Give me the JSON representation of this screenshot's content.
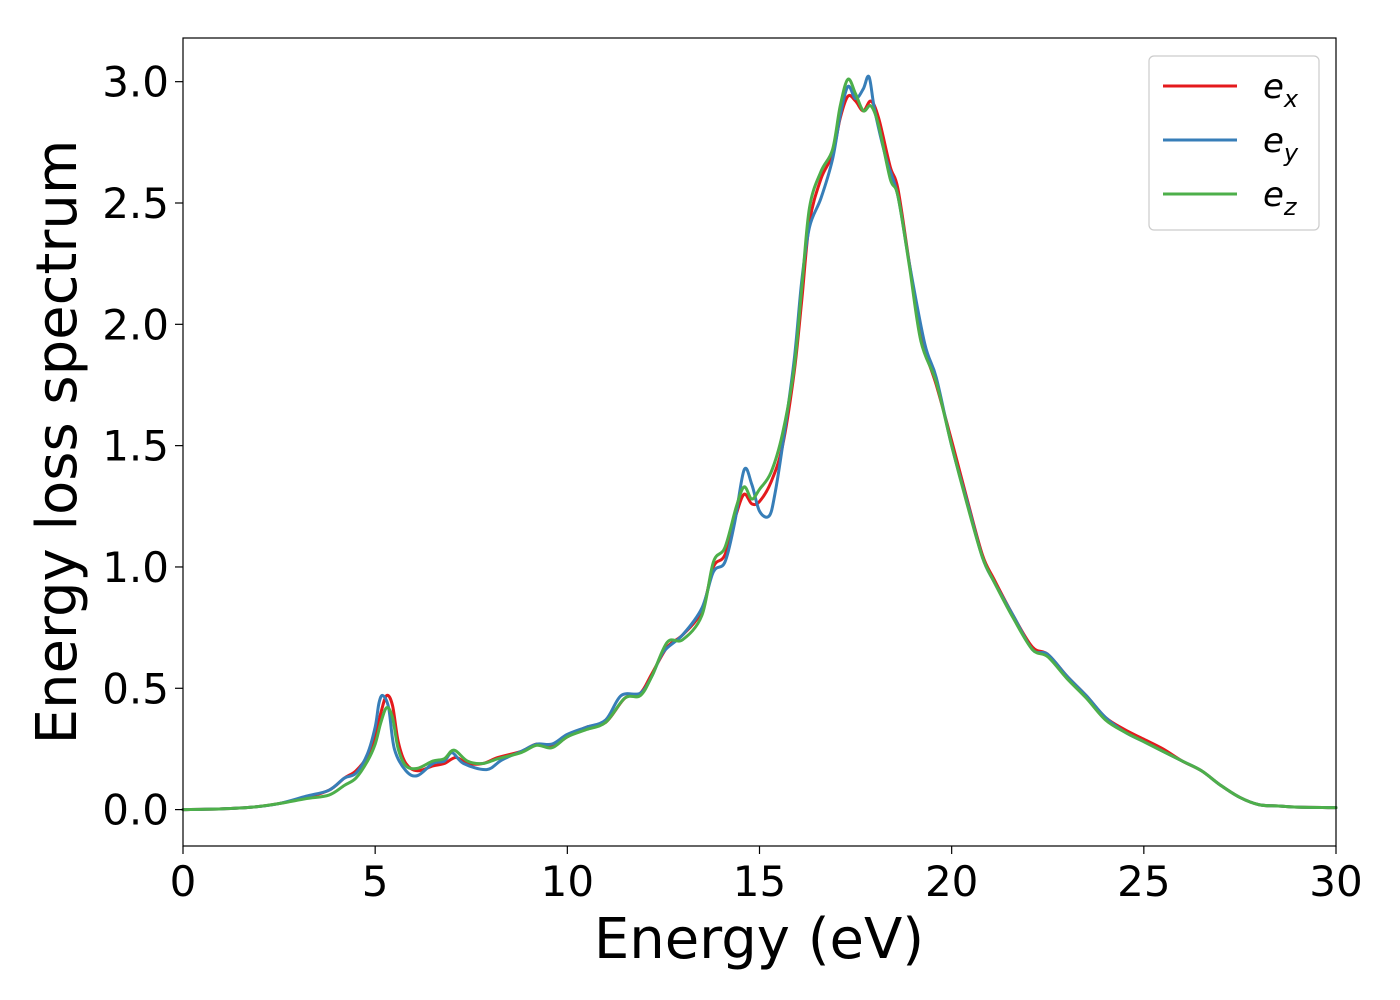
{
  "chart_data": {
    "type": "line",
    "title": "",
    "xlabel": "Energy (eV)",
    "ylabel": "Energy loss spectrum",
    "xlim": [
      0,
      30
    ],
    "ylim": [
      -0.15,
      3.18
    ],
    "xticks": [
      0,
      5,
      10,
      15,
      20,
      25,
      30
    ],
    "yticks": [
      0.0,
      0.5,
      1.0,
      1.5,
      2.0,
      2.5,
      3.0
    ],
    "xtick_labels": [
      "0",
      "5",
      "10",
      "15",
      "20",
      "25",
      "30"
    ],
    "ytick_labels": [
      "0.0",
      "0.5",
      "1.0",
      "1.5",
      "2.0",
      "2.5",
      "3.0"
    ],
    "grid": false,
    "legend_position": "top-right",
    "series": [
      {
        "name": "e_x",
        "label_base": "e",
        "label_sub": "x",
        "color": "#e41a1c",
        "points": [
          [
            0,
            0.0
          ],
          [
            1,
            0.003
          ],
          [
            1.8,
            0.01
          ],
          [
            2.5,
            0.025
          ],
          [
            3.2,
            0.05
          ],
          [
            3.8,
            0.08
          ],
          [
            4.2,
            0.13
          ],
          [
            4.5,
            0.16
          ],
          [
            4.8,
            0.22
          ],
          [
            5.0,
            0.3
          ],
          [
            5.15,
            0.4
          ],
          [
            5.3,
            0.47
          ],
          [
            5.45,
            0.43
          ],
          [
            5.6,
            0.28
          ],
          [
            5.8,
            0.19
          ],
          [
            6.1,
            0.16
          ],
          [
            6.5,
            0.18
          ],
          [
            6.8,
            0.19
          ],
          [
            7.1,
            0.215
          ],
          [
            7.4,
            0.19
          ],
          [
            7.8,
            0.19
          ],
          [
            8.2,
            0.215
          ],
          [
            8.8,
            0.24
          ],
          [
            9.2,
            0.27
          ],
          [
            9.6,
            0.26
          ],
          [
            10,
            0.3
          ],
          [
            10.5,
            0.34
          ],
          [
            11,
            0.36
          ],
          [
            11.5,
            0.46
          ],
          [
            11.9,
            0.48
          ],
          [
            12.2,
            0.56
          ],
          [
            12.6,
            0.67
          ],
          [
            13.0,
            0.72
          ],
          [
            13.5,
            0.82
          ],
          [
            13.8,
            1.0
          ],
          [
            14.1,
            1.05
          ],
          [
            14.4,
            1.22
          ],
          [
            14.6,
            1.3
          ],
          [
            14.8,
            1.26
          ],
          [
            15.0,
            1.27
          ],
          [
            15.3,
            1.35
          ],
          [
            15.6,
            1.5
          ],
          [
            15.9,
            1.8
          ],
          [
            16.1,
            2.1
          ],
          [
            16.3,
            2.42
          ],
          [
            16.6,
            2.6
          ],
          [
            16.9,
            2.7
          ],
          [
            17.1,
            2.85
          ],
          [
            17.3,
            2.94
          ],
          [
            17.5,
            2.92
          ],
          [
            17.7,
            2.88
          ],
          [
            17.9,
            2.92
          ],
          [
            18.1,
            2.85
          ],
          [
            18.4,
            2.65
          ],
          [
            18.6,
            2.56
          ],
          [
            18.9,
            2.25
          ],
          [
            19.2,
            1.95
          ],
          [
            19.6,
            1.75
          ],
          [
            20.0,
            1.52
          ],
          [
            20.4,
            1.28
          ],
          [
            20.8,
            1.05
          ],
          [
            21.1,
            0.95
          ],
          [
            21.6,
            0.8
          ],
          [
            22.1,
            0.67
          ],
          [
            22.5,
            0.64
          ],
          [
            23.0,
            0.55
          ],
          [
            23.5,
            0.47
          ],
          [
            24.0,
            0.38
          ],
          [
            24.5,
            0.33
          ],
          [
            25.0,
            0.29
          ],
          [
            25.5,
            0.25
          ],
          [
            26.0,
            0.2
          ],
          [
            26.5,
            0.16
          ],
          [
            27.0,
            0.1
          ],
          [
            27.5,
            0.05
          ],
          [
            28,
            0.02
          ],
          [
            28.5,
            0.015
          ],
          [
            29,
            0.01
          ],
          [
            30,
            0.008
          ]
        ]
      },
      {
        "name": "e_y",
        "label_base": "e",
        "label_sub": "y",
        "color": "#377eb8",
        "points": [
          [
            0,
            0.0
          ],
          [
            1,
            0.003
          ],
          [
            1.8,
            0.01
          ],
          [
            2.5,
            0.025
          ],
          [
            3.2,
            0.055
          ],
          [
            3.8,
            0.08
          ],
          [
            4.2,
            0.13
          ],
          [
            4.5,
            0.15
          ],
          [
            4.8,
            0.23
          ],
          [
            5.0,
            0.34
          ],
          [
            5.1,
            0.44
          ],
          [
            5.2,
            0.47
          ],
          [
            5.35,
            0.42
          ],
          [
            5.5,
            0.25
          ],
          [
            5.8,
            0.16
          ],
          [
            6.1,
            0.14
          ],
          [
            6.5,
            0.19
          ],
          [
            6.8,
            0.2
          ],
          [
            7.0,
            0.235
          ],
          [
            7.3,
            0.19
          ],
          [
            7.9,
            0.165
          ],
          [
            8.3,
            0.205
          ],
          [
            8.8,
            0.24
          ],
          [
            9.2,
            0.27
          ],
          [
            9.6,
            0.27
          ],
          [
            10,
            0.31
          ],
          [
            10.5,
            0.34
          ],
          [
            11,
            0.37
          ],
          [
            11.4,
            0.47
          ],
          [
            11.9,
            0.48
          ],
          [
            12.2,
            0.55
          ],
          [
            12.5,
            0.65
          ],
          [
            13.0,
            0.72
          ],
          [
            13.5,
            0.83
          ],
          [
            13.8,
            0.98
          ],
          [
            14.1,
            1.02
          ],
          [
            14.35,
            1.18
          ],
          [
            14.6,
            1.4
          ],
          [
            14.8,
            1.34
          ],
          [
            15.0,
            1.23
          ],
          [
            15.25,
            1.21
          ],
          [
            15.4,
            1.3
          ],
          [
            15.6,
            1.5
          ],
          [
            15.9,
            1.85
          ],
          [
            16.1,
            2.18
          ],
          [
            16.3,
            2.4
          ],
          [
            16.6,
            2.52
          ],
          [
            16.9,
            2.68
          ],
          [
            17.1,
            2.86
          ],
          [
            17.3,
            2.98
          ],
          [
            17.5,
            2.93
          ],
          [
            17.7,
            2.97
          ],
          [
            17.85,
            3.02
          ],
          [
            18.0,
            2.88
          ],
          [
            18.3,
            2.68
          ],
          [
            18.6,
            2.53
          ],
          [
            18.9,
            2.25
          ],
          [
            19.3,
            1.92
          ],
          [
            19.6,
            1.78
          ],
          [
            20.0,
            1.5
          ],
          [
            20.4,
            1.27
          ],
          [
            20.8,
            1.04
          ],
          [
            21.1,
            0.94
          ],
          [
            21.6,
            0.8
          ],
          [
            22.1,
            0.66
          ],
          [
            22.5,
            0.64
          ],
          [
            23.0,
            0.55
          ],
          [
            23.5,
            0.47
          ],
          [
            24.0,
            0.38
          ],
          [
            24.5,
            0.32
          ],
          [
            25.0,
            0.28
          ],
          [
            25.5,
            0.24
          ],
          [
            26.0,
            0.2
          ],
          [
            26.5,
            0.16
          ],
          [
            27.0,
            0.1
          ],
          [
            27.5,
            0.05
          ],
          [
            28,
            0.02
          ],
          [
            28.5,
            0.015
          ],
          [
            29,
            0.01
          ],
          [
            30,
            0.008
          ]
        ]
      },
      {
        "name": "e_z",
        "label_base": "e",
        "label_sub": "z",
        "color": "#4daf4a",
        "points": [
          [
            0,
            0.0
          ],
          [
            1,
            0.003
          ],
          [
            1.8,
            0.01
          ],
          [
            2.5,
            0.025
          ],
          [
            3.2,
            0.045
          ],
          [
            3.8,
            0.06
          ],
          [
            4.2,
            0.1
          ],
          [
            4.5,
            0.13
          ],
          [
            4.8,
            0.2
          ],
          [
            5.0,
            0.27
          ],
          [
            5.15,
            0.36
          ],
          [
            5.3,
            0.42
          ],
          [
            5.45,
            0.38
          ],
          [
            5.6,
            0.25
          ],
          [
            5.8,
            0.18
          ],
          [
            6.1,
            0.17
          ],
          [
            6.5,
            0.2
          ],
          [
            6.8,
            0.21
          ],
          [
            7.05,
            0.245
          ],
          [
            7.4,
            0.2
          ],
          [
            7.8,
            0.19
          ],
          [
            8.2,
            0.21
          ],
          [
            8.8,
            0.235
          ],
          [
            9.2,
            0.265
          ],
          [
            9.6,
            0.255
          ],
          [
            10,
            0.3
          ],
          [
            10.5,
            0.33
          ],
          [
            11,
            0.36
          ],
          [
            11.5,
            0.46
          ],
          [
            11.9,
            0.47
          ],
          [
            12.2,
            0.55
          ],
          [
            12.6,
            0.69
          ],
          [
            13.0,
            0.7
          ],
          [
            13.5,
            0.8
          ],
          [
            13.8,
            1.02
          ],
          [
            14.1,
            1.08
          ],
          [
            14.4,
            1.25
          ],
          [
            14.6,
            1.33
          ],
          [
            14.8,
            1.28
          ],
          [
            15.0,
            1.32
          ],
          [
            15.3,
            1.39
          ],
          [
            15.6,
            1.55
          ],
          [
            15.9,
            1.82
          ],
          [
            16.1,
            2.15
          ],
          [
            16.3,
            2.48
          ],
          [
            16.6,
            2.63
          ],
          [
            16.9,
            2.72
          ],
          [
            17.1,
            2.9
          ],
          [
            17.3,
            3.01
          ],
          [
            17.5,
            2.95
          ],
          [
            17.7,
            2.88
          ],
          [
            17.9,
            2.9
          ],
          [
            18.1,
            2.82
          ],
          [
            18.4,
            2.6
          ],
          [
            18.6,
            2.53
          ],
          [
            18.9,
            2.24
          ],
          [
            19.2,
            1.93
          ],
          [
            19.6,
            1.76
          ],
          [
            20.0,
            1.5
          ],
          [
            20.4,
            1.26
          ],
          [
            20.8,
            1.04
          ],
          [
            21.1,
            0.94
          ],
          [
            21.6,
            0.79
          ],
          [
            22.1,
            0.66
          ],
          [
            22.5,
            0.63
          ],
          [
            23.0,
            0.54
          ],
          [
            23.5,
            0.46
          ],
          [
            24.0,
            0.37
          ],
          [
            24.5,
            0.32
          ],
          [
            25.0,
            0.28
          ],
          [
            25.5,
            0.24
          ],
          [
            26.0,
            0.2
          ],
          [
            26.5,
            0.16
          ],
          [
            27.0,
            0.1
          ],
          [
            27.5,
            0.05
          ],
          [
            28,
            0.02
          ],
          [
            28.5,
            0.015
          ],
          [
            29,
            0.01
          ],
          [
            30,
            0.008
          ]
        ]
      }
    ]
  }
}
